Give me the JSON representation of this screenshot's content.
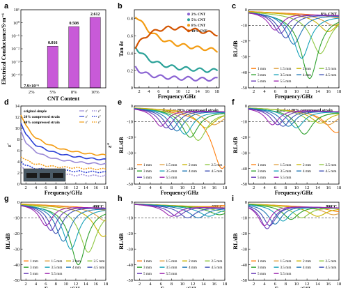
{
  "chart_data": [
    {
      "id": "a",
      "type": "bar",
      "panel_label": "a",
      "xlabel": "CNT Content",
      "ylabel": "Electrical Conductance/S·m⁻¹",
      "yscale": "log",
      "ylim": [
        1e-05,
        10
      ],
      "yticks": [
        {
          "v": 0.0001,
          "t": "10⁻⁴"
        },
        {
          "v": 0.001,
          "t": "10⁻³"
        },
        {
          "v": 0.01,
          "t": "10⁻²"
        },
        {
          "v": 0.1,
          "t": "10⁻¹"
        },
        {
          "v": 1,
          "t": "10⁰"
        },
        {
          "v": 10,
          "t": "10¹"
        }
      ],
      "categories": [
        "2%",
        "5%",
        "8%",
        "10%"
      ],
      "values": [
        7.9e-06,
        0.016,
        0.508,
        2.612
      ],
      "data_labels": [
        "7.9×10⁻⁶",
        "0.016",
        "0.508",
        "2.612"
      ],
      "bar_color": "#c85ad8"
    },
    {
      "id": "b",
      "type": "line",
      "panel_label": "b",
      "xlabel": "Frequency/GHz",
      "ylabel": "Tan δε",
      "xlim": [
        1,
        18.5
      ],
      "ylim": [
        0,
        0.9
      ],
      "xticks": [
        2,
        4,
        6,
        8,
        10,
        12,
        14,
        16,
        18
      ],
      "yticks": [
        0.0,
        0.2,
        0.4,
        0.6,
        0.8
      ],
      "x": [
        1,
        2,
        3,
        4,
        6,
        8,
        10,
        12,
        14,
        16,
        18
      ],
      "series": [
        {
          "name": "2% CNT",
          "color": "#8a63d2",
          "values": [
            0.25,
            0.2,
            0.17,
            0.15,
            0.13,
            0.12,
            0.11,
            0.11,
            0.1,
            0.1,
            0.1
          ]
        },
        {
          "name": "5% CNT",
          "color": "#2aa198",
          "values": [
            0.5,
            0.42,
            0.37,
            0.33,
            0.28,
            0.25,
            0.23,
            0.22,
            0.21,
            0.2,
            0.2
          ]
        },
        {
          "name": "8% CNT",
          "color": "#f39c12",
          "values": [
            0.85,
            0.78,
            0.72,
            0.66,
            0.58,
            0.53,
            0.5,
            0.48,
            0.46,
            0.45,
            0.43
          ]
        },
        {
          "name": "10% CNT",
          "color": "#d35400",
          "values": [
            0.45,
            0.52,
            0.58,
            0.62,
            0.67,
            0.69,
            0.69,
            0.68,
            0.66,
            0.64,
            0.62
          ]
        }
      ]
    },
    {
      "id": "c",
      "type": "line",
      "panel_label": "c",
      "annotation": "8% CNT",
      "xlabel": "Frequency/GHz",
      "ylabel": "RL/dB",
      "xlim": [
        1,
        18
      ],
      "ylim": [
        -50,
        0
      ],
      "xticks": [
        2,
        4,
        6,
        8,
        10,
        12,
        14,
        16,
        18
      ],
      "yticks": [
        0,
        -10,
        -20,
        -30,
        -40,
        -50
      ],
      "ref_line": -10,
      "series": [
        {
          "name": "1 mm",
          "color": "#ff7f0e",
          "dip_freq": 18,
          "dip_depth": -5
        },
        {
          "name": "1.5 mm",
          "color": "#e0a040",
          "dip_freq": 17,
          "dip_depth": -10
        },
        {
          "name": "2 mm",
          "color": "#c8b400",
          "dip_freq": 16,
          "dip_depth": -14
        },
        {
          "name": "2.5 mm",
          "color": "#8cc63f",
          "dip_freq": 14.5,
          "dip_depth": -28
        },
        {
          "name": "3 mm",
          "color": "#2ca02c",
          "dip_freq": 12.5,
          "dip_depth": -44
        },
        {
          "name": "3.5 mm",
          "color": "#17a2b8",
          "dip_freq": 11,
          "dip_depth": -31
        },
        {
          "name": "4 mm",
          "color": "#1f77b4",
          "dip_freq": 9.5,
          "dip_depth": -22
        },
        {
          "name": "4.5 mm",
          "color": "#3f51b5",
          "dip_freq": 8,
          "dip_depth": -18
        },
        {
          "name": "5 mm",
          "color": "#673ab7",
          "dip_freq": 7,
          "dip_depth": -15
        },
        {
          "name": "5.5 mm",
          "color": "#9c27b0",
          "dip_freq": 6,
          "dip_depth": -13
        }
      ]
    },
    {
      "id": "d",
      "type": "line",
      "panel_label": "d",
      "xlabel": "Frequency/GHz",
      "ylabel": "ε′",
      "ylabel2": "ε″",
      "xlim": [
        1,
        18
      ],
      "ylim": [
        0,
        14
      ],
      "xticks": [
        2,
        4,
        6,
        8,
        10,
        12,
        14,
        16,
        18
      ],
      "yticks": [
        0,
        2,
        4,
        6,
        8,
        10,
        12,
        14
      ],
      "x": [
        1,
        2,
        3,
        4,
        6,
        8,
        10,
        12,
        14,
        16,
        18
      ],
      "series": [
        {
          "name": "original simple",
          "color": "#9b8ad6",
          "eps_real": [
            9.5,
            7.5,
            6.5,
            5.8,
            5.0,
            4.5,
            4.2,
            4.0,
            3.8,
            3.7,
            3.6
          ],
          "eps_imag": [
            3.2,
            2.6,
            2.3,
            2.1,
            1.9,
            1.8,
            1.7,
            1.6,
            1.6,
            1.5,
            1.5
          ]
        },
        {
          "name": "20% compressed strain",
          "color": "#2a3fd6",
          "eps_real": [
            11.0,
            9.0,
            7.8,
            7.0,
            6.2,
            5.6,
            5.2,
            4.9,
            4.7,
            4.5,
            4.4
          ],
          "eps_imag": [
            4.0,
            3.4,
            3.0,
            2.8,
            2.6,
            2.5,
            2.4,
            2.3,
            2.2,
            2.2,
            2.1
          ]
        },
        {
          "name": "40% compressed strain",
          "color": "#f39c12",
          "eps_real": [
            12.5,
            10.5,
            9.2,
            8.3,
            7.3,
            6.6,
            6.1,
            5.8,
            5.5,
            5.3,
            5.2
          ],
          "eps_imag": [
            5.0,
            4.3,
            3.9,
            3.6,
            3.3,
            3.1,
            3.0,
            2.9,
            2.8,
            2.7,
            2.7
          ]
        }
      ],
      "legend_keys": [
        "ε′",
        "ε″"
      ]
    },
    {
      "id": "e",
      "type": "line",
      "panel_label": "e",
      "annotation": "fixed at 20% compressed strain",
      "xlabel": "Frequency/GHz",
      "ylabel": "RL/dB",
      "xlim": [
        1,
        18
      ],
      "ylim": [
        -50,
        0
      ],
      "xticks": [
        2,
        4,
        6,
        8,
        10,
        12,
        14,
        16,
        18
      ],
      "yticks": [
        0,
        -10,
        -20,
        -30,
        -40,
        -50
      ],
      "ref_line": -10,
      "series": [
        {
          "name": "1 mm",
          "color": "#ff7f0e",
          "dip_freq": 17.5,
          "dip_depth": -40
        },
        {
          "name": "1.5 mm",
          "color": "#e0a040",
          "dip_freq": 16,
          "dip_depth": -12
        },
        {
          "name": "2 mm",
          "color": "#c8b400",
          "dip_freq": 14.5,
          "dip_depth": -14
        },
        {
          "name": "2.5 mm",
          "color": "#8cc63f",
          "dip_freq": 13,
          "dip_depth": -22
        },
        {
          "name": "3 mm",
          "color": "#2ca02c",
          "dip_freq": 11.5,
          "dip_depth": -20
        },
        {
          "name": "3.5 mm",
          "color": "#17a2b8",
          "dip_freq": 10.5,
          "dip_depth": -18
        },
        {
          "name": "4 mm",
          "color": "#1f77b4",
          "dip_freq": 9,
          "dip_depth": -16
        },
        {
          "name": "4.5 mm",
          "color": "#3f51b5",
          "dip_freq": 8,
          "dip_depth": -15
        },
        {
          "name": "5 mm",
          "color": "#673ab7",
          "dip_freq": 7,
          "dip_depth": -14
        },
        {
          "name": "5.5 mm",
          "color": "#9c27b0",
          "dip_freq": 6,
          "dip_depth": -13
        }
      ]
    },
    {
      "id": "f",
      "type": "line",
      "panel_label": "f",
      "annotation": "fixed at 40% compressed strain",
      "xlabel": "Frequency/GHz",
      "ylabel": "RL/dB",
      "xlim": [
        1,
        18
      ],
      "ylim": [
        -50,
        0
      ],
      "xticks": [
        2,
        4,
        6,
        8,
        10,
        12,
        14,
        16,
        18
      ],
      "yticks": [
        0,
        -10,
        -20,
        -30,
        -40,
        -50
      ],
      "ref_line": -10,
      "series": [
        {
          "name": "1 mm",
          "color": "#ff7f0e",
          "dip_freq": 17.5,
          "dip_depth": -17
        },
        {
          "name": "1.5 mm",
          "color": "#e0a040",
          "dip_freq": 16,
          "dip_depth": -12
        },
        {
          "name": "2 mm",
          "color": "#c8b400",
          "dip_freq": 14.5,
          "dip_depth": -11
        },
        {
          "name": "2.5 mm",
          "color": "#8cc63f",
          "dip_freq": 13,
          "dip_depth": -10
        },
        {
          "name": "3 mm",
          "color": "#2ca02c",
          "dip_freq": 11.5,
          "dip_depth": -18
        },
        {
          "name": "3.5 mm",
          "color": "#17a2b8",
          "dip_freq": 10,
          "dip_depth": -14
        },
        {
          "name": "4 mm",
          "color": "#1f77b4",
          "dip_freq": 8.5,
          "dip_depth": -13
        },
        {
          "name": "4.5 mm",
          "color": "#3f51b5",
          "dip_freq": 7.5,
          "dip_depth": -13
        },
        {
          "name": "5 mm",
          "color": "#673ab7",
          "dip_freq": 6.5,
          "dip_depth": -12
        },
        {
          "name": "5.5 mm",
          "color": "#9c27b0",
          "dip_freq": 5.5,
          "dip_depth": -12
        }
      ]
    },
    {
      "id": "g",
      "type": "line",
      "panel_label": "g",
      "annotation": "400°C",
      "xlabel": "Frequency/GHz",
      "ylabel": "RL/dB",
      "xlim": [
        1,
        18
      ],
      "ylim": [
        -50,
        0
      ],
      "xticks": [
        2,
        4,
        6,
        8,
        10,
        12,
        14,
        16,
        18
      ],
      "yticks": [
        0,
        -10,
        -20,
        -30,
        -40,
        -50
      ],
      "ref_line": -10,
      "series": [
        {
          "name": "1 mm",
          "color": "#ff7f0e",
          "dip_freq": 18,
          "dip_depth": -5
        },
        {
          "name": "1.5 mm",
          "color": "#e0a040",
          "dip_freq": 18,
          "dip_depth": -12
        },
        {
          "name": "2 mm",
          "color": "#c8b400",
          "dip_freq": 17.5,
          "dip_depth": -22
        },
        {
          "name": "2.5 mm",
          "color": "#8cc63f",
          "dip_freq": 14.5,
          "dip_depth": -32
        },
        {
          "name": "3 mm",
          "color": "#2ca02c",
          "dip_freq": 12.5,
          "dip_depth": -40
        },
        {
          "name": "3.5 mm",
          "color": "#17a2b8",
          "dip_freq": 11,
          "dip_depth": -30
        },
        {
          "name": "4 mm",
          "color": "#1f77b4",
          "dip_freq": 9.5,
          "dip_depth": -25
        },
        {
          "name": "4.5 mm",
          "color": "#3f51b5",
          "dip_freq": 8,
          "dip_depth": -20
        },
        {
          "name": "5 mm",
          "color": "#673ab7",
          "dip_freq": 7,
          "dip_depth": -18
        },
        {
          "name": "5.5 mm",
          "color": "#9c27b0",
          "dip_freq": 6,
          "dip_depth": -15
        }
      ]
    },
    {
      "id": "h",
      "type": "line",
      "panel_label": "h",
      "annotation": "600°C",
      "xlabel": "Frequency/GHz",
      "ylabel": "RL/dB",
      "xlim": [
        1,
        18
      ],
      "ylim": [
        -50,
        0
      ],
      "xticks": [
        2,
        4,
        6,
        8,
        10,
        12,
        14,
        16,
        18
      ],
      "yticks": [
        0,
        -10,
        -20,
        -30,
        -40,
        -50
      ],
      "ref_line": -10,
      "series": [
        {
          "name": "1 mm",
          "color": "#ff7f0e",
          "dip_freq": 18,
          "dip_depth": -2
        },
        {
          "name": "1.5 mm",
          "color": "#e0a040",
          "dip_freq": 18,
          "dip_depth": -3
        },
        {
          "name": "2 mm",
          "color": "#c8b400",
          "dip_freq": 18,
          "dip_depth": -4
        },
        {
          "name": "2.5 mm",
          "color": "#8cc63f",
          "dip_freq": 18,
          "dip_depth": -6
        },
        {
          "name": "3 mm",
          "color": "#2ca02c",
          "dip_freq": 17,
          "dip_depth": -8
        },
        {
          "name": "3.5 mm",
          "color": "#17a2b8",
          "dip_freq": 15,
          "dip_depth": -9
        },
        {
          "name": "4 mm",
          "color": "#1f77b4",
          "dip_freq": 13,
          "dip_depth": -10
        },
        {
          "name": "4.5 mm",
          "color": "#3f51b5",
          "dip_freq": 11,
          "dip_depth": -10
        },
        {
          "name": "5 mm",
          "color": "#673ab7",
          "dip_freq": 9,
          "dip_depth": -9
        },
        {
          "name": "5.5 mm",
          "color": "#9c27b0",
          "dip_freq": 8,
          "dip_depth": -9
        }
      ]
    },
    {
      "id": "i",
      "type": "line",
      "panel_label": "i",
      "annotation": "800°C",
      "xlabel": "Frequency/GHz",
      "ylabel": "RL/dB",
      "xlim": [
        1,
        18
      ],
      "ylim": [
        -50,
        0
      ],
      "xticks": [
        2,
        4,
        6,
        8,
        10,
        12,
        14,
        16,
        18
      ],
      "yticks": [
        0,
        -10,
        -20,
        -30,
        -40,
        -50
      ],
      "ref_line": -10,
      "series": [
        {
          "name": "1 mm",
          "color": "#ff7f0e",
          "dip_freq": 18,
          "dip_depth": -6
        },
        {
          "name": "1.5 mm",
          "color": "#e0a040",
          "dip_freq": 17,
          "dip_depth": -8
        },
        {
          "name": "2 mm",
          "color": "#c8b400",
          "dip_freq": 14,
          "dip_depth": -9
        },
        {
          "name": "2.5 mm",
          "color": "#8cc63f",
          "dip_freq": 11,
          "dip_depth": -10
        },
        {
          "name": "3 mm",
          "color": "#2ca02c",
          "dip_freq": 9,
          "dip_depth": -11
        },
        {
          "name": "3.5 mm",
          "color": "#17a2b8",
          "dip_freq": 7.5,
          "dip_depth": -12
        },
        {
          "name": "4 mm",
          "color": "#1f77b4",
          "dip_freq": 6,
          "dip_depth": -14
        },
        {
          "name": "4.5 mm",
          "color": "#3f51b5",
          "dip_freq": 5,
          "dip_depth": -15
        },
        {
          "name": "5 mm",
          "color": "#673ab7",
          "dip_freq": 4.5,
          "dip_depth": -17
        },
        {
          "name": "5.5 mm",
          "color": "#9c27b0",
          "dip_freq": 4,
          "dip_depth": -15
        }
      ]
    }
  ]
}
